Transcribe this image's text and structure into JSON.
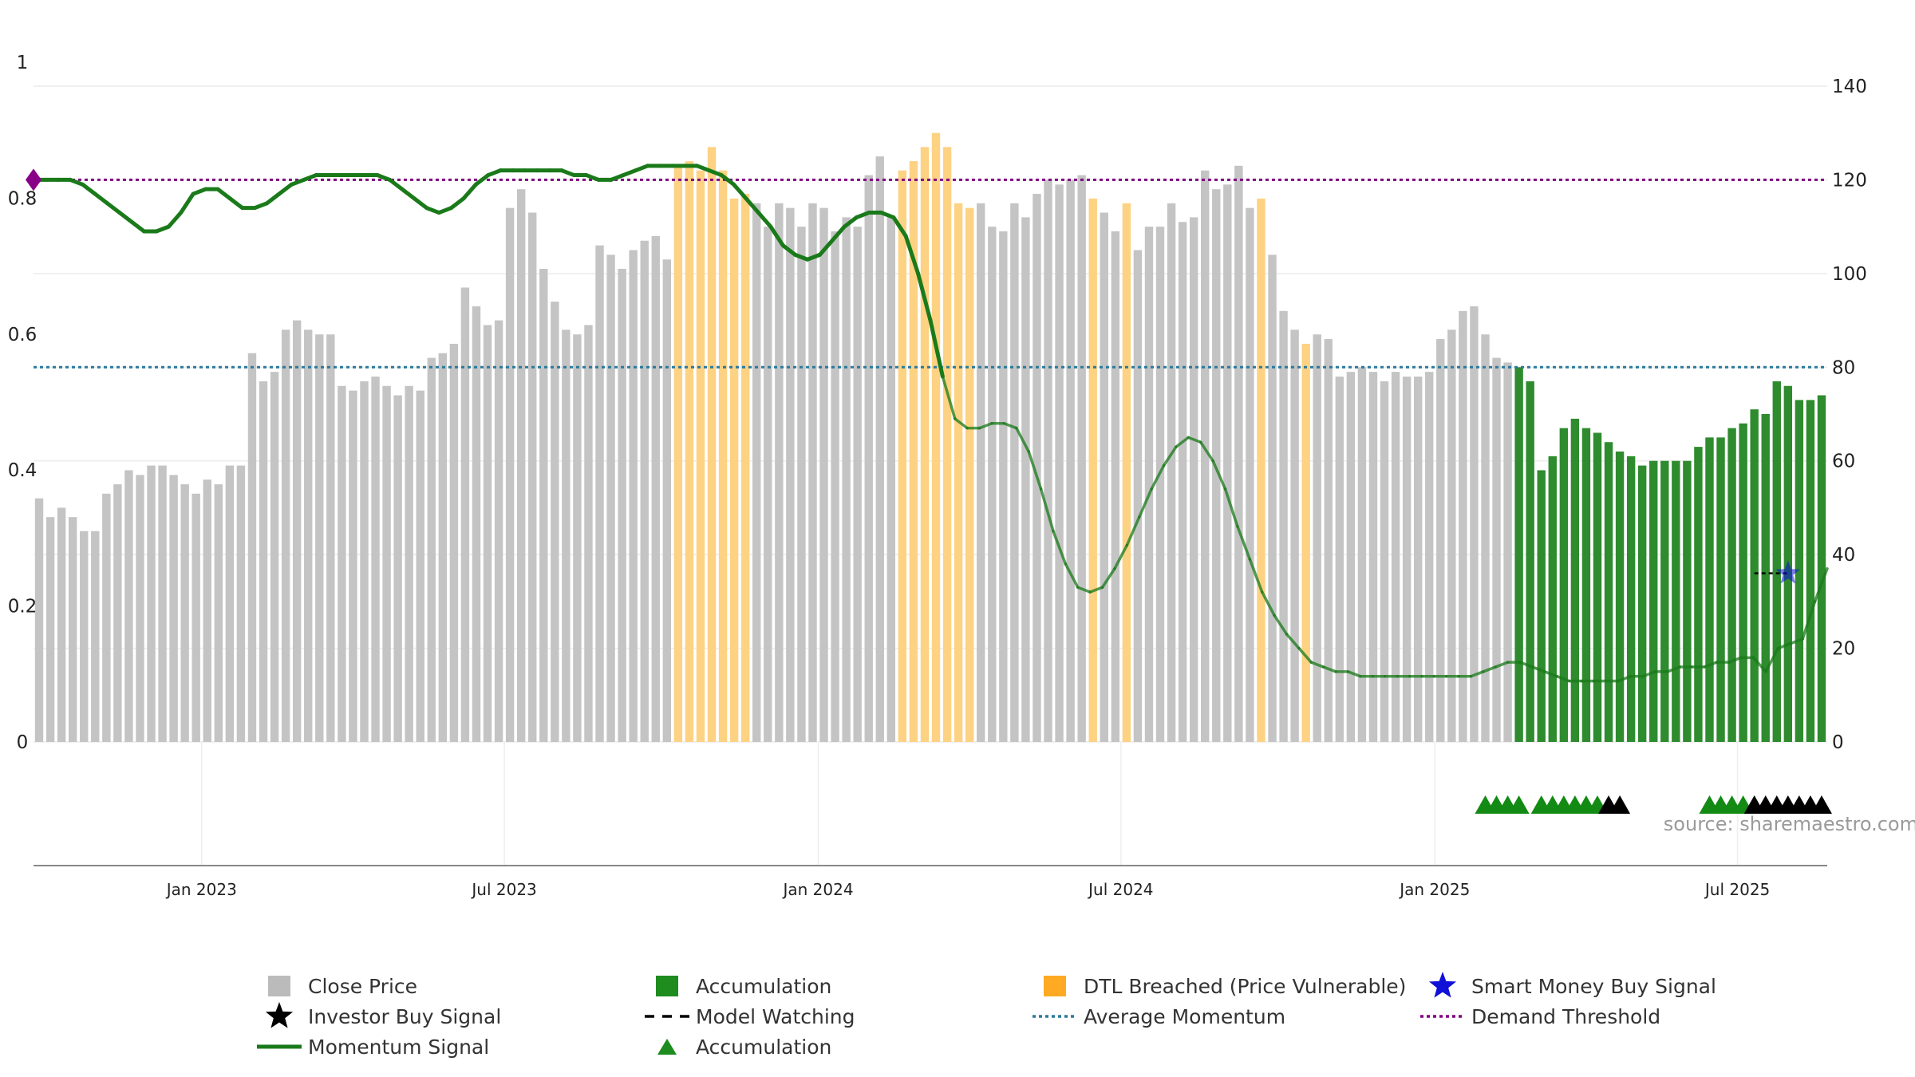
{
  "chart_data": {
    "type": "bar",
    "source_label": "source: sharemaestro.com",
    "left_axis": {
      "ticks": [
        "0",
        "0.2",
        "0.4",
        "0.6",
        "0.8",
        "1"
      ],
      "range": [
        0,
        1
      ]
    },
    "right_axis": {
      "ticks": [
        "0",
        "20",
        "40",
        "60",
        "80",
        "100",
        "120",
        "140"
      ],
      "range": [
        0,
        140
      ]
    },
    "x_axis": {
      "ticks": [
        "Jan 2023",
        "Jul 2023",
        "Jan 2024",
        "Jul 2024",
        "Jan 2025",
        "Jul 2025"
      ]
    },
    "demand_threshold": 120,
    "average_momentum": 80,
    "colors": {
      "close": "#c4c4c4",
      "accumulation": "#2e8b2e",
      "dtl": "#fdd283",
      "momentum": "#1a7a1a",
      "investor": "#000000",
      "smart": "#1010d8",
      "threshold": "#800080",
      "average": "#2b7a9b"
    },
    "close_price": [
      "52,48,50,48,45,45,53,55,58,57,59,59,57,55,53,56,55,59,59,83,77,79,88,90,88,87,87,76,75,77,78,76,74,76,75,82,83,85,97,93,89,90,114,118,113,101,94,88,87,89,106,104,101,105,107,108,103,",
      "123,124,122,127,122,116,117,115,110,115,114,110,115,114,109,112,110,121,125,112,122,124,127,130,127,",
      "115,114,115,110,109,115,112,117,120,119,120,121,116,113,109,115,105,110,110,115,111,112,122,118,119,123,114,116,104,",
      "92,88,85,87,86,78,79,80,79,77,79,78,78,79,86,88,92,93,87,82,81,80,77,58,61,67,69,67,66,64,62,61,59,60,60,60,60,63,65,65,67,68,71,70,77,76,73,73,74"
    ],
    "bar_category": "000000000000000000000000000000000000000000000000000000000ddddddd0000000000000ddddddd0000000000d00d00000000000d000d000000000000000000aaaaaaaaaaaaaaaaaaaaaaaaaaaaaaaaaaaaaaaaaaaaaaa",
    "momentum_signal": [
      "120,120,120,120,119,117,115,113,111,109,109,110,113,117,118,118,116,114,114,115,117,119,120,121,121,121,121,121,121,120,118,116,114,113,114,116,119,121,122,122,122,122,122,122,121,121,120,120,121,122,123,123,123,123,123,122,121,119,116,113,110,106,104,103,104,107,110,112,113,113,112,108,100,90,",
      "78,69,67,67,68,68,67,62,54,45,38,33,32,33,37,42,48,54,59,63,65,64,60,54,46,39,32,27,23,20,17,16,15,15,14,14,14,14,14,14,14,14,14,14,15,16,17,17,16,15,14,13,13,13,13,13,14,14,15,15,16,16,16,17,17,18,18,15,20,21,22,30,37"
    ],
    "momentum_segment_types": "nnnnnnnnnnnnnnnnnnnnnnnnnnnnnnnnnnnnnnnnnnnnnnnnnnnnnnnnnnnnnnnnnnnnnnnnnnnnnnnnnnnnnnnnnnnnnnnnnnnnnnnnnnnnnnnnnnnnnnnnnnnnnnnnnnnnnnnnnnnnnnnnnnnnnnnnnnnnnnnnnnnn",
    "signal_markers": "000000000000000000000000000000000000000000000000000000000000000000000000000000000000000000000000000000000000000000000000000000000gggg0ggggggbb0000000ggggbbbbbbbbbbbbgggggg",
    "smart_money_signal": [
      [
        156,
        36
      ]
    ],
    "model_watching_segment": [
      [
        153,
        36
      ],
      [
        156,
        36
      ]
    ],
    "start_marker_value": 120,
    "legend": [
      {
        "label": "Close Price",
        "symbol": "square",
        "color": "#bbbbbb"
      },
      {
        "label": "Accumulation",
        "symbol": "square",
        "color": "#1e8c1e"
      },
      {
        "label": "DTL Breached (Price Vulnerable)",
        "symbol": "square",
        "color": "#ffaa22"
      },
      {
        "label": "Smart Money Buy Signal",
        "symbol": "star",
        "color": "#1010d8"
      },
      {
        "label": "Investor Buy Signal",
        "symbol": "star",
        "color": "#000000"
      },
      {
        "label": "Model Watching",
        "symbol": "dash",
        "color": "#000000"
      },
      {
        "label": "Average Momentum",
        "symbol": "dot",
        "color": "#2b7a9b"
      },
      {
        "label": "Demand Threshold",
        "symbol": "dot",
        "color": "#800080"
      },
      {
        "label": "Momentum Signal",
        "symbol": "line",
        "color": "#1a7a1a"
      },
      {
        "label": "Accumulation",
        "symbol": "triangle",
        "color": "#1e8c1e"
      }
    ]
  }
}
